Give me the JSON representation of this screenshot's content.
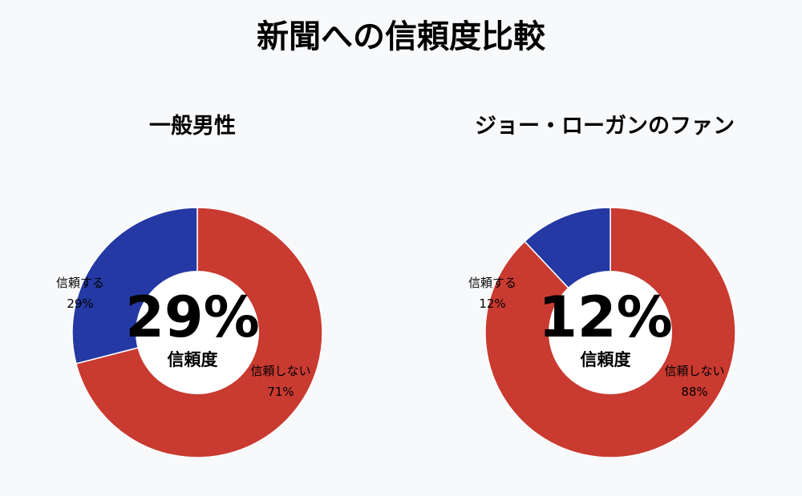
{
  "title": "新聞への信頼度比較",
  "colors": {
    "trust": "#2439a3",
    "distrust": "#c93a31",
    "hole": "#ffffff",
    "background": "#f8f9fb"
  },
  "chart_data": [
    {
      "type": "pie",
      "title": "一般男性",
      "center_value": "29%",
      "center_label": "信頼度",
      "slices": [
        {
          "label": "信頼しない",
          "value": 71,
          "value_label": "71%",
          "color": "#c93a31"
        },
        {
          "label": "信頼する",
          "value": 29,
          "value_label": "29%",
          "color": "#2439a3"
        }
      ]
    },
    {
      "type": "pie",
      "title": "ジョー・ローガンのファン",
      "center_value": "12%",
      "center_label": "信頼度",
      "slices": [
        {
          "label": "信頼しない",
          "value": 88,
          "value_label": "88%",
          "color": "#c93a31"
        },
        {
          "label": "信頼する",
          "value": 12,
          "value_label": "12%",
          "color": "#2439a3"
        }
      ]
    }
  ]
}
